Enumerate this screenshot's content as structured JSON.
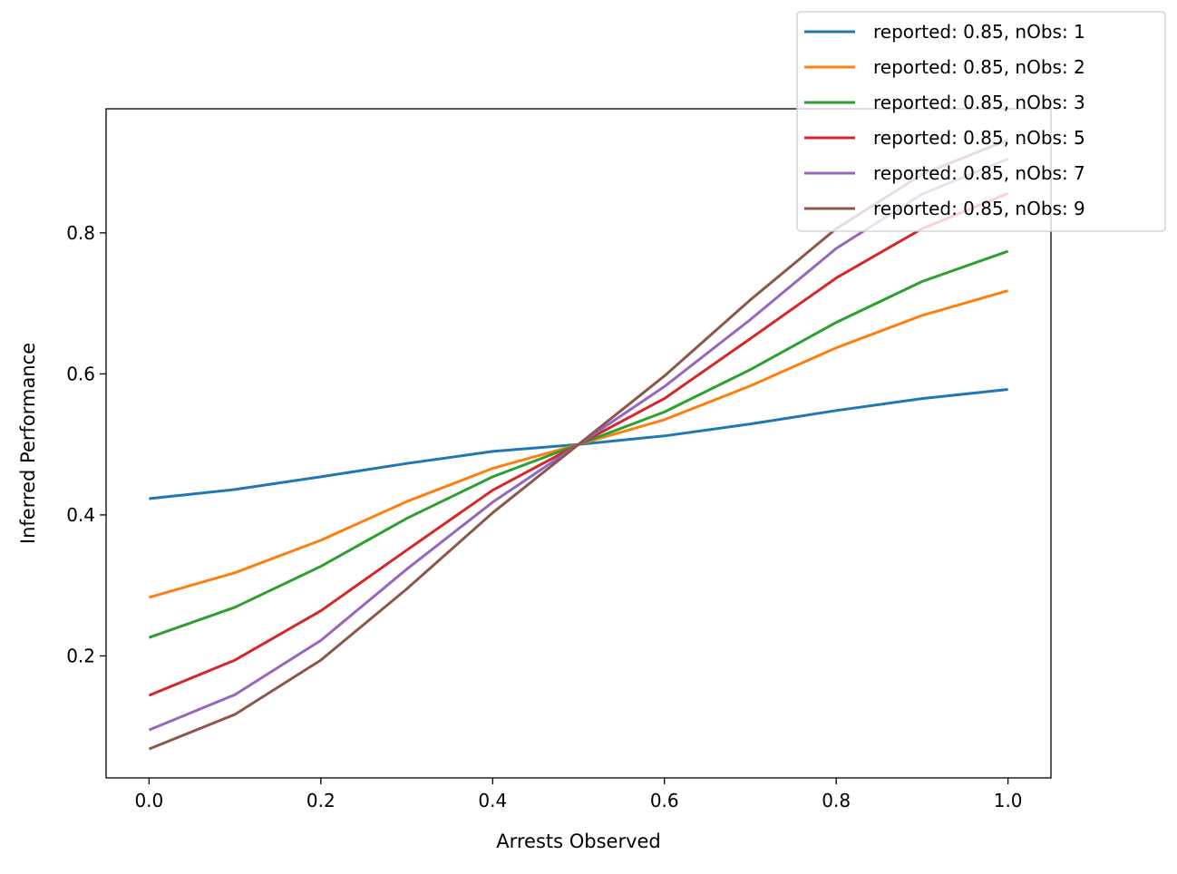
{
  "chart_data": {
    "type": "line",
    "title": "",
    "xlabel": "Arrests Observed",
    "ylabel": "Inferred Performance",
    "xlim": [
      -0.05,
      1.05
    ],
    "ylim": [
      0.027,
      0.976
    ],
    "xticks": [
      0.0,
      0.2,
      0.4,
      0.6,
      0.8,
      1.0
    ],
    "xtick_labels": [
      "0.0",
      "0.2",
      "0.4",
      "0.6",
      "0.8",
      "1.0"
    ],
    "yticks": [
      0.2,
      0.4,
      0.6,
      0.8
    ],
    "ytick_labels": [
      "0.2",
      "0.4",
      "0.6",
      "0.8"
    ],
    "grid": false,
    "legend_placement": "top-right",
    "x": [
      0.0,
      0.1,
      0.2,
      0.3,
      0.4,
      0.5,
      0.6,
      0.7,
      0.8,
      0.9,
      1.0
    ],
    "series": [
      {
        "name": "reported: 0.85, nObs: 1",
        "color": "#1f77b4",
        "values": [
          0.423,
          0.436,
          0.454,
          0.473,
          0.49,
          0.5,
          0.512,
          0.529,
          0.548,
          0.565,
          0.578
        ]
      },
      {
        "name": "reported: 0.85, nObs: 2",
        "color": "#ff7f0e",
        "values": [
          0.283,
          0.318,
          0.364,
          0.419,
          0.466,
          0.5,
          0.535,
          0.583,
          0.637,
          0.683,
          0.718
        ]
      },
      {
        "name": "reported: 0.85, nObs: 3",
        "color": "#2ca02c",
        "values": [
          0.226,
          0.269,
          0.327,
          0.395,
          0.454,
          0.5,
          0.546,
          0.606,
          0.673,
          0.731,
          0.774
        ]
      },
      {
        "name": "reported: 0.85, nObs: 5",
        "color": "#d62728",
        "values": [
          0.144,
          0.194,
          0.264,
          0.35,
          0.435,
          0.5,
          0.565,
          0.65,
          0.736,
          0.806,
          0.856
        ]
      },
      {
        "name": "reported: 0.85, nObs: 7",
        "color": "#9467bd",
        "values": [
          0.095,
          0.145,
          0.222,
          0.323,
          0.418,
          0.5,
          0.582,
          0.677,
          0.778,
          0.855,
          0.905
        ]
      },
      {
        "name": "reported: 0.85, nObs: 9",
        "color": "#8c564b",
        "values": [
          0.068,
          0.117,
          0.194,
          0.295,
          0.403,
          0.5,
          0.597,
          0.705,
          0.806,
          0.883,
          0.932
        ]
      }
    ]
  }
}
